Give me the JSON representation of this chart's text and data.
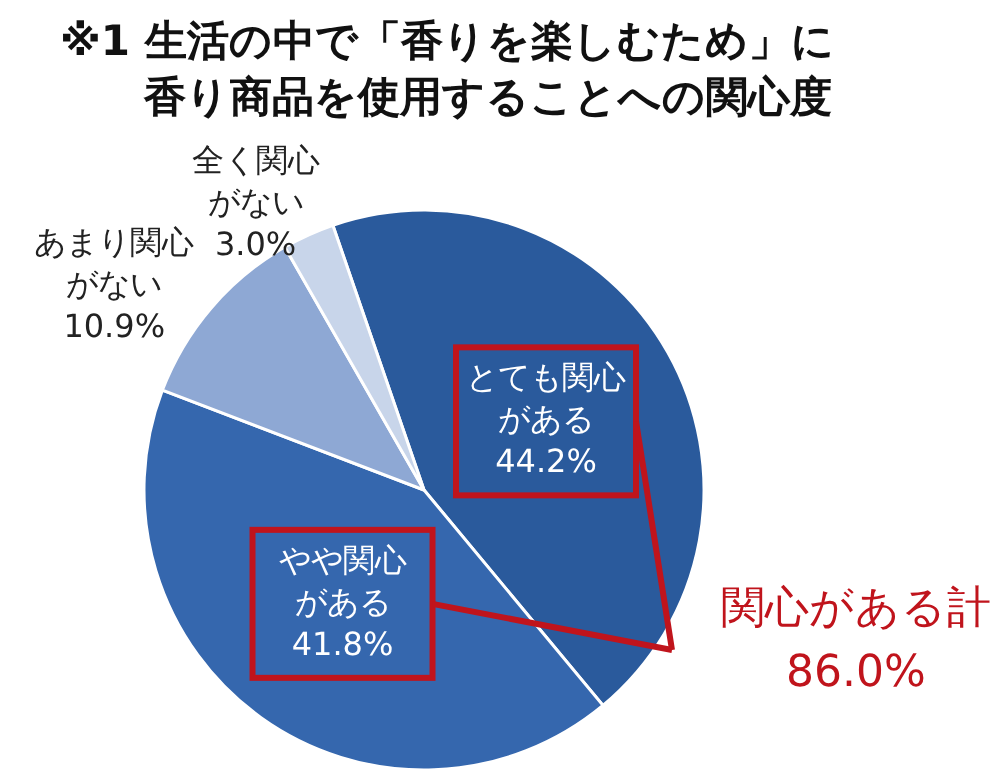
{
  "chart_data": {
    "type": "pie",
    "title": "※1 生活の中で「香りを楽しむため」に香り商品を使用することへの関心度",
    "categories": [
      "とても関心がある",
      "やや関心がある",
      "あまり関心がない",
      "全く関心がない"
    ],
    "values": [
      44.2,
      41.8,
      10.9,
      3.0
    ],
    "value_labels": [
      "44.2%",
      "41.8%",
      "10.9%",
      "3.0%"
    ],
    "colors": [
      "#2a5a9c",
      "#3567ae",
      "#8ea8d4",
      "#c8d5ea"
    ],
    "annotations": [
      "関心がある計 86.0%"
    ],
    "legend": false
  }
}
